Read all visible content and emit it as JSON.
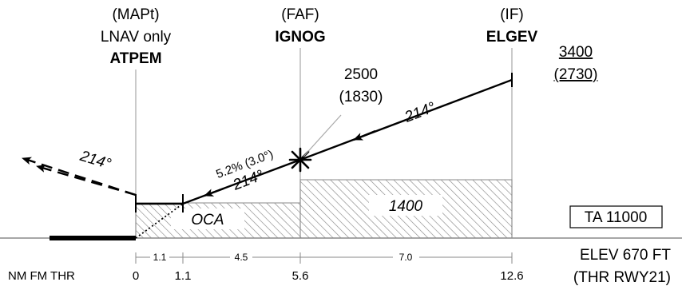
{
  "fixes": {
    "mapt": {
      "role": "(MAPt)",
      "note": "LNAV only",
      "name": "ATPEM"
    },
    "faf": {
      "role": "(FAF)",
      "name": "IGNOG"
    },
    "if": {
      "role": "(IF)",
      "name": "ELGEV"
    }
  },
  "altitudes": {
    "if_alt": "3400",
    "if_height": "(2730)",
    "faf_alt": "2500",
    "faf_height": "(1830)"
  },
  "tracks": {
    "initial": "214°",
    "final": "214°",
    "missed": "214°",
    "gradient": "5.2% (3.0°)"
  },
  "areas": {
    "oca": "OCA",
    "step_alt": "1400"
  },
  "ta_box": "TA 11000",
  "elevation": "ELEV 670 FT",
  "threshold": "(THR RWY21)",
  "distance_scale": {
    "row_label": "NM FM THR",
    "ticks": [
      "0",
      "1.1",
      "5.6",
      "12.6"
    ],
    "segments": [
      "1.1",
      "4.5",
      "7.0"
    ]
  },
  "colors": {
    "ink": "#000000",
    "hatch": "#8a8a8a",
    "guide": "#a8a8a8"
  }
}
